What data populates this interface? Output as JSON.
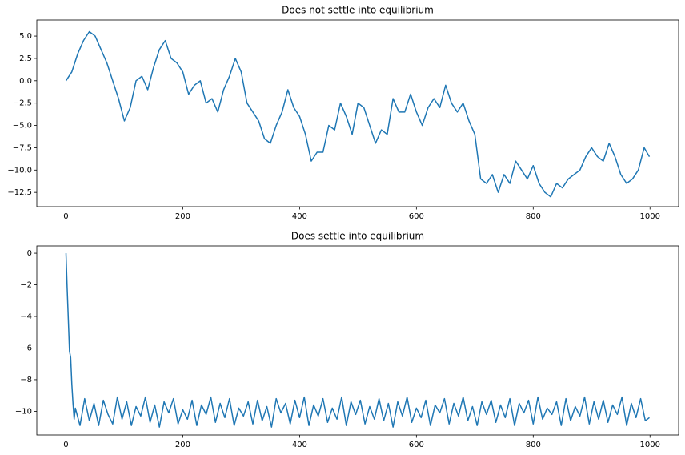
{
  "chart_data": [
    {
      "type": "line",
      "title": "Does not settle into equilibrium",
      "color": "#1f77b4",
      "x": [
        0,
        10,
        20,
        30,
        40,
        50,
        60,
        70,
        80,
        90,
        100,
        110,
        120,
        130,
        140,
        150,
        160,
        170,
        180,
        190,
        200,
        210,
        220,
        230,
        240,
        250,
        260,
        270,
        280,
        290,
        300,
        310,
        320,
        330,
        340,
        350,
        360,
        370,
        380,
        390,
        400,
        410,
        420,
        430,
        440,
        450,
        460,
        470,
        480,
        490,
        500,
        510,
        520,
        530,
        540,
        550,
        560,
        570,
        580,
        590,
        600,
        610,
        620,
        630,
        640,
        650,
        660,
        670,
        680,
        690,
        700,
        710,
        720,
        730,
        740,
        750,
        760,
        770,
        780,
        790,
        800,
        810,
        820,
        830,
        840,
        850,
        860,
        870,
        880,
        890,
        900,
        910,
        920,
        930,
        940,
        950,
        960,
        970,
        980,
        990,
        999
      ],
      "values": [
        0,
        1,
        3,
        4.5,
        5.5,
        5,
        3.5,
        2,
        0,
        -2,
        -4.5,
        -3,
        0,
        0.5,
        -1,
        1.5,
        3.5,
        4.5,
        2.5,
        2,
        1,
        -1.5,
        -0.5,
        0,
        -2.5,
        -2,
        -3.5,
        -1,
        0.5,
        2.5,
        1,
        -2.5,
        -3.5,
        -4.5,
        -6.5,
        -7,
        -5,
        -3.5,
        -1,
        -3,
        -4,
        -6,
        -9,
        -8,
        -8,
        -5,
        -5.5,
        -2.5,
        -4,
        -6,
        -2.5,
        -3,
        -5,
        -7,
        -5.5,
        -6,
        -2,
        -3.5,
        -3.5,
        -1.5,
        -3.5,
        -5,
        -3,
        -2,
        -3,
        -0.5,
        -2.5,
        -3.5,
        -2.5,
        -4.5,
        -6,
        -11,
        -11.5,
        -10.5,
        -12.5,
        -10.5,
        -11.5,
        -9,
        -10,
        -11,
        -9.5,
        -11.5,
        -12.5,
        -13,
        -11.5,
        -12,
        -11,
        -10.5,
        -10,
        -8.5,
        -7.5,
        -8.5,
        -9,
        -7,
        -8.5,
        -10.5,
        -11.5,
        -11,
        -10,
        -7.5,
        -8.5
      ],
      "xlim": [
        -50,
        1049
      ],
      "xticks": [
        0,
        200,
        400,
        600,
        800,
        1000
      ],
      "ylim": [
        -14.1,
        6.8
      ],
      "yticks": [
        {
          "value": 5,
          "label": "5.0"
        },
        2.5,
        {
          "value": 0,
          "label": "0.0"
        },
        {
          "value": -2.5,
          "label": "−2.5"
        },
        {
          "value": -5,
          "label": "−5.0"
        },
        {
          "value": -7.5,
          "label": "−7.5"
        },
        {
          "value": -10,
          "label": "−10.0"
        },
        {
          "value": -12.5,
          "label": "−12.5"
        }
      ]
    },
    {
      "type": "line",
      "title": "Does settle into equilibrium",
      "color": "#1f77b4",
      "x": [
        0,
        2,
        4,
        6,
        8,
        10,
        12,
        14,
        16,
        24,
        32,
        40,
        48,
        56,
        64,
        72,
        80,
        88,
        96,
        104,
        112,
        120,
        128,
        136,
        144,
        152,
        160,
        168,
        176,
        184,
        192,
        200,
        208,
        216,
        224,
        232,
        240,
        248,
        256,
        264,
        272,
        280,
        288,
        296,
        304,
        312,
        320,
        328,
        336,
        344,
        352,
        360,
        368,
        376,
        384,
        392,
        400,
        408,
        416,
        424,
        432,
        440,
        448,
        456,
        464,
        472,
        480,
        488,
        496,
        504,
        512,
        520,
        528,
        536,
        544,
        552,
        560,
        568,
        576,
        584,
        592,
        600,
        608,
        616,
        624,
        632,
        640,
        648,
        656,
        664,
        672,
        680,
        688,
        696,
        704,
        712,
        720,
        728,
        736,
        744,
        752,
        760,
        768,
        776,
        784,
        792,
        800,
        808,
        816,
        824,
        832,
        840,
        848,
        856,
        864,
        872,
        880,
        888,
        896,
        904,
        912,
        920,
        928,
        936,
        944,
        952,
        960,
        968,
        976,
        984,
        992,
        999
      ],
      "values": [
        0,
        -2.2,
        -4.2,
        -6.2,
        -6.6,
        -8.3,
        -9.5,
        -10.5,
        -9.8,
        -10.9,
        -9.2,
        -10.6,
        -9.5,
        -10.9,
        -9.3,
        -10.2,
        -10.8,
        -9.1,
        -10.5,
        -9.4,
        -10.9,
        -9.7,
        -10.3,
        -9.1,
        -10.7,
        -9.6,
        -11,
        -9.4,
        -10.1,
        -9.2,
        -10.8,
        -9.9,
        -10.5,
        -9.3,
        -10.9,
        -9.6,
        -10.2,
        -9.1,
        -10.7,
        -9.5,
        -10.4,
        -9.2,
        -10.9,
        -9.8,
        -10.3,
        -9.4,
        -10.8,
        -9.3,
        -10.6,
        -9.7,
        -11,
        -9.2,
        -10.1,
        -9.5,
        -10.8,
        -9.3,
        -10.4,
        -9.1,
        -10.9,
        -9.6,
        -10.3,
        -9.2,
        -10.7,
        -9.8,
        -10.5,
        -9.1,
        -10.9,
        -9.4,
        -10.2,
        -9.3,
        -10.8,
        -9.7,
        -10.5,
        -9.2,
        -10.6,
        -9.5,
        -11,
        -9.4,
        -10.3,
        -9.1,
        -10.7,
        -9.8,
        -10.4,
        -9.3,
        -10.9,
        -9.6,
        -10.1,
        -9.2,
        -10.8,
        -9.5,
        -10.3,
        -9.1,
        -10.6,
        -9.7,
        -10.9,
        -9.4,
        -10.2,
        -9.3,
        -10.7,
        -9.6,
        -10.4,
        -9.2,
        -10.9,
        -9.5,
        -10.1,
        -9.3,
        -10.8,
        -9.1,
        -10.5,
        -9.8,
        -10.2,
        -9.4,
        -10.9,
        -9.2,
        -10.6,
        -9.7,
        -10.3,
        -9.1,
        -10.8,
        -9.4,
        -10.5,
        -9.3,
        -10.7,
        -9.6,
        -10.2,
        -9.1,
        -10.9,
        -9.5,
        -10.4,
        -9.2,
        -10.6,
        -10.4
      ],
      "xlim": [
        -50,
        1049
      ],
      "xticks": [
        0,
        200,
        400,
        600,
        800,
        1000
      ],
      "ylim": [
        -11.5,
        0.46
      ],
      "yticks": [
        0,
        {
          "value": -2,
          "label": "−2"
        },
        {
          "value": -4,
          "label": "−4"
        },
        {
          "value": -6,
          "label": "−6"
        },
        {
          "value": -8,
          "label": "−8"
        },
        {
          "value": -10,
          "label": "−10"
        }
      ]
    }
  ]
}
